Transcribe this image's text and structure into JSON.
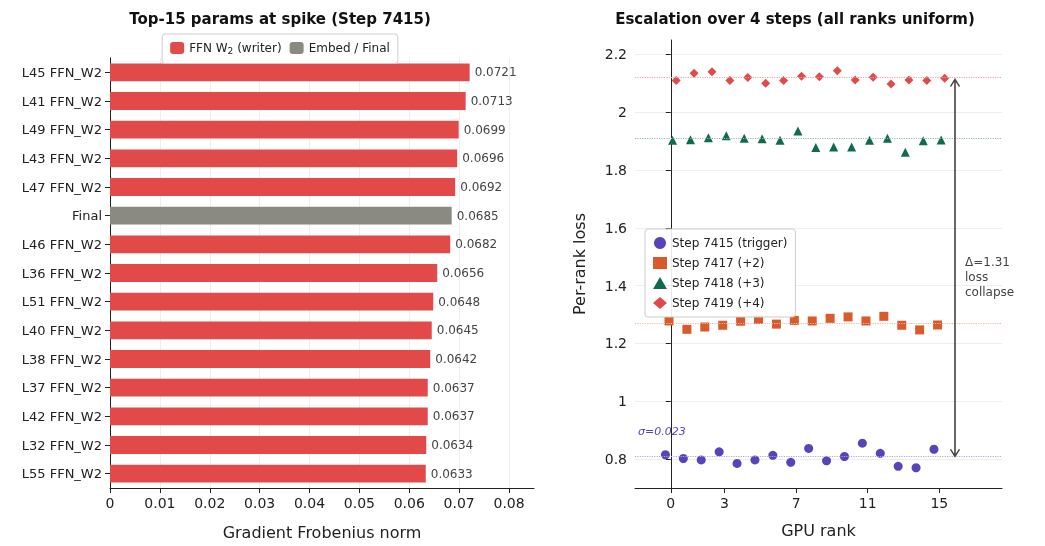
{
  "chart_data": [
    {
      "type": "bar",
      "orientation": "horizontal",
      "stacked": true,
      "title": "Top-15 params at spike (Step 7415)",
      "xlabel": "Gradient Frobenius norm",
      "categories": [
        "L45 FFN_W2",
        "L41 FFN_W2",
        "L49 FFN_W2",
        "L43 FFN_W2",
        "L47 FFN_W2",
        "Final",
        "L46 FFN_W2",
        "L36 FFN_W2",
        "L51 FFN_W2",
        "L40 FFN_W2",
        "L38 FFN_W2",
        "L37 FFN_W2",
        "L42 FFN_W2",
        "L32 FFN_W2",
        "L55 FFN_W2"
      ],
      "series": [
        {
          "name": "FFN W$_{2}$ (writer)",
          "color": "#e24a4a",
          "values": [
            0.0721,
            0.0713,
            0.0699,
            0.0696,
            0.0692,
            null,
            0.0682,
            0.0656,
            0.0648,
            0.0645,
            0.0642,
            0.0637,
            0.0637,
            0.0634,
            0.0633
          ]
        },
        {
          "name": "Embed / Final",
          "color": "#8a8a80",
          "values": [
            null,
            null,
            null,
            null,
            null,
            0.0685,
            null,
            null,
            null,
            null,
            null,
            null,
            null,
            null,
            null
          ]
        }
      ],
      "xlim": [
        0,
        0.085
      ],
      "xticks": [
        0,
        0.01,
        0.02,
        0.03,
        0.04,
        0.05,
        0.06,
        0.07,
        0.08
      ],
      "data_labels": true,
      "grid": "x",
      "legend": "top"
    },
    {
      "type": "scatter",
      "title": "Escalation over 4 steps (all ranks uniform)",
      "xlabel": "GPU rank",
      "ylabel": "Per-rank loss",
      "series": [
        {
          "name": "Step 7415 (trigger)",
          "color": "#5544bb",
          "marker": "circle",
          "x": [
            -0.3,
            0.7,
            1.7,
            2.7,
            3.7,
            4.7,
            5.7,
            6.7,
            7.7,
            8.7,
            9.7,
            10.7,
            11.7,
            12.7,
            13.7,
            14.7
          ],
          "values": [
            0.815,
            0.802,
            0.797,
            0.825,
            0.785,
            0.797,
            0.813,
            0.789,
            0.837,
            0.794,
            0.809,
            0.855,
            0.82,
            0.775,
            0.77,
            0.834
          ]
        },
        {
          "name": "Step 7417 (+2)",
          "color": "#d95a2b",
          "marker": "square",
          "x": [
            -0.1,
            0.9,
            1.9,
            2.9,
            3.9,
            4.9,
            5.9,
            6.9,
            7.9,
            8.9,
            9.9,
            10.9,
            11.9,
            12.9,
            13.9,
            14.9
          ],
          "values": [
            1.278,
            1.249,
            1.257,
            1.263,
            1.277,
            1.283,
            1.267,
            1.28,
            1.278,
            1.287,
            1.292,
            1.278,
            1.294,
            1.263,
            1.247,
            1.264
          ]
        },
        {
          "name": "Step 7418 (+3)",
          "color": "#0e6b50",
          "marker": "triangle",
          "x": [
            0.1,
            1.1,
            2.1,
            3.1,
            4.1,
            5.1,
            6.1,
            7.1,
            8.1,
            9.1,
            10.1,
            11.1,
            12.1,
            13.1,
            14.1,
            15.1
          ],
          "values": [
            1.903,
            1.905,
            1.912,
            1.919,
            1.91,
            1.908,
            1.903,
            1.935,
            1.878,
            1.88,
            1.88,
            1.903,
            1.91,
            1.862,
            1.901,
            1.904
          ]
        },
        {
          "name": "Step 7419 (+4)",
          "color": "#e24a4a",
          "marker": "diamond",
          "x": [
            0.3,
            1.3,
            2.3,
            3.3,
            4.3,
            5.3,
            6.3,
            7.3,
            8.3,
            9.3,
            10.3,
            11.3,
            12.3,
            13.3,
            14.3,
            15.3
          ],
          "values": [
            2.11,
            2.135,
            2.14,
            2.11,
            2.12,
            2.1,
            2.11,
            2.125,
            2.123,
            2.144,
            2.112,
            2.121,
            2.098,
            2.112,
            2.11,
            2.118
          ]
        }
      ],
      "ref_lines": [
        {
          "axis": "y",
          "value": 0.806,
          "color": "#b0a8e0",
          "line_style": "dotted"
        },
        {
          "axis": "y",
          "value": 1.272,
          "color": "#f0b8a0",
          "line_style": "dotted"
        },
        {
          "axis": "y",
          "value": 1.905,
          "color": "#90b8a8",
          "line_style": "dotted"
        },
        {
          "axis": "y",
          "value": 2.12,
          "color": "#f0a0a0",
          "line_style": "dotted"
        }
      ],
      "annotations": [
        "σ=0.023",
        "Δ=1.31\nloss\ncollapse"
      ],
      "xlim": [
        -2,
        18.5
      ],
      "xticks": [
        0,
        3,
        7,
        11,
        15
      ],
      "ylim": [
        0.7,
        2.25
      ],
      "yticks": [
        0.8,
        1.0,
        1.2,
        1.4,
        1.6,
        1.8,
        2.0,
        2.2
      ],
      "grid": "y",
      "legend": "left"
    }
  ]
}
